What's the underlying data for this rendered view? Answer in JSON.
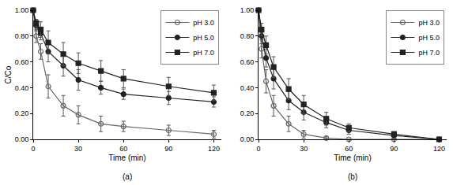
{
  "chart_data": [
    {
      "type": "line",
      "title": "(a)",
      "x_label": "Time (min)",
      "y_label": "C/Co",
      "x": [
        0,
        2,
        5,
        10,
        20,
        30,
        45,
        60,
        90,
        120
      ],
      "series": [
        {
          "name": "pH 3.0",
          "color": "#666666",
          "marker": "circle-open",
          "line_style": "solid",
          "values": [
            1.0,
            0.8,
            0.68,
            0.41,
            0.26,
            0.19,
            0.12,
            0.1,
            0.07,
            0.04
          ],
          "errors": [
            0,
            0.05,
            0.06,
            0.09,
            0.08,
            0.07,
            0.06,
            0.04,
            0.04,
            0.03
          ]
        },
        {
          "name": "pH 5.0",
          "color": "#222222",
          "marker": "circle",
          "line_style": "solid",
          "values": [
            1.0,
            0.88,
            0.82,
            0.68,
            0.57,
            0.46,
            0.4,
            0.35,
            0.32,
            0.29
          ],
          "errors": [
            0,
            0.04,
            0.05,
            0.08,
            0.08,
            0.08,
            0.05,
            0.04,
            0.05,
            0.04
          ]
        },
        {
          "name": "pH 7.0",
          "color": "#222222",
          "marker": "square",
          "line_style": "solid",
          "values": [
            1.0,
            0.9,
            0.85,
            0.75,
            0.66,
            0.59,
            0.53,
            0.47,
            0.41,
            0.36
          ],
          "errors": [
            0,
            0.03,
            0.06,
            0.09,
            0.09,
            0.08,
            0.08,
            0.07,
            0.07,
            0.06
          ]
        }
      ],
      "xlim": [
        0,
        125
      ],
      "xticks": [
        0,
        30,
        60,
        90,
        120
      ],
      "ylim": [
        0,
        1
      ],
      "yticks": [
        {
          "value": 0,
          "label": "0.00"
        },
        {
          "value": 0.2,
          "label": "0.20"
        },
        {
          "value": 0.4,
          "label": "0.40"
        },
        {
          "value": 0.6,
          "label": "0.60"
        },
        {
          "value": 0.8,
          "label": "0.80"
        },
        {
          "value": 1,
          "label": "1.00"
        }
      ],
      "grid": false,
      "legend": "upper right"
    },
    {
      "type": "line",
      "title": "(b)",
      "x_label": "Time (min)",
      "x": [
        0,
        2,
        5,
        10,
        20,
        30,
        45,
        60,
        90,
        120
      ],
      "series": [
        {
          "name": "pH 3.0",
          "color": "#666666",
          "marker": "circle-open",
          "line_style": "solid",
          "values": [
            1.0,
            0.7,
            0.45,
            0.26,
            0.12,
            0.04,
            0.01,
            0.0,
            0.0,
            0.0
          ],
          "errors": [
            0,
            0.07,
            0.09,
            0.08,
            0.06,
            0.03,
            0.01,
            0,
            0,
            0
          ]
        },
        {
          "name": "pH 5.0",
          "color": "#222222",
          "marker": "circle",
          "line_style": "solid",
          "values": [
            1.0,
            0.8,
            0.63,
            0.47,
            0.3,
            0.21,
            0.13,
            0.07,
            0.03,
            0.0
          ],
          "errors": [
            0,
            0.06,
            0.07,
            0.08,
            0.07,
            0.06,
            0.04,
            0.03,
            0.02,
            0
          ]
        },
        {
          "name": "pH 7.0",
          "color": "#222222",
          "marker": "square",
          "line_style": "solid",
          "values": [
            1.0,
            0.85,
            0.73,
            0.56,
            0.39,
            0.27,
            0.16,
            0.09,
            0.04,
            0.0
          ],
          "errors": [
            0,
            0.05,
            0.07,
            0.08,
            0.08,
            0.07,
            0.05,
            0.03,
            0.02,
            0
          ]
        }
      ],
      "xlim": [
        0,
        125
      ],
      "xticks": [
        0,
        30,
        60,
        90,
        120
      ],
      "ylim": [
        0,
        1
      ],
      "yticks": [
        {
          "value": 0,
          "label": "0.00"
        },
        {
          "value": 0.2,
          "label": "0.20"
        },
        {
          "value": 0.4,
          "label": "0.40"
        },
        {
          "value": 0.6,
          "label": "0.60"
        },
        {
          "value": 0.8,
          "label": "0.80"
        },
        {
          "value": 1,
          "label": "1.00"
        }
      ],
      "grid": false,
      "legend": "upper right"
    }
  ]
}
